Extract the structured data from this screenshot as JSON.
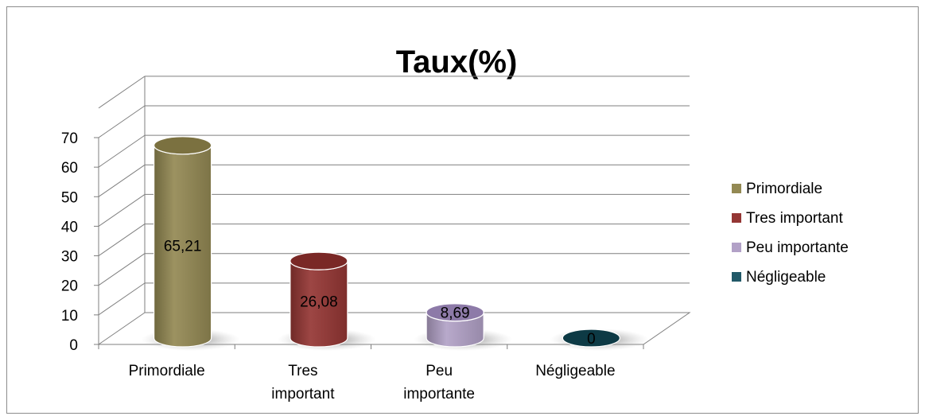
{
  "chart_data": {
    "type": "bar",
    "style": "3d-cylinder",
    "title": "Taux(%)",
    "categories": [
      "Primordiale",
      "Tres important",
      "Peu importante",
      "Négligeable"
    ],
    "category_labels": [
      [
        "Primordiale"
      ],
      [
        "Tres",
        "important"
      ],
      [
        "Peu",
        "importante"
      ],
      [
        "Négligeable"
      ]
    ],
    "values": [
      65.21,
      26.08,
      8.69,
      0
    ],
    "value_labels": [
      "65,21",
      "26,08",
      "8,69",
      "0"
    ],
    "ylim": [
      0,
      70
    ],
    "yticks": [
      "0",
      "10",
      "20",
      "30",
      "40",
      "50",
      "60",
      "70"
    ],
    "grid": true,
    "legend": {
      "position": "right",
      "entries": [
        "Primordiale",
        "Tres important",
        "Peu importante",
        "Négligeable"
      ]
    },
    "colors": [
      "#938953",
      "#943634",
      "#b2a1c7",
      "#215968"
    ],
    "cap_colors": [
      "#7b7140",
      "#7a2826",
      "#8d7aa8",
      "#0d3a45"
    ]
  }
}
